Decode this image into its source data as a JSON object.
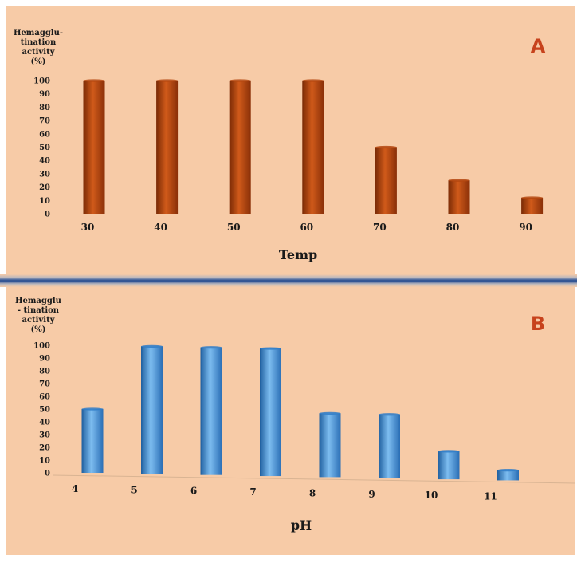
{
  "chart_data": [
    {
      "panel": "A",
      "type": "bar",
      "categories": [
        "30",
        "40",
        "50",
        "60",
        "70",
        "80",
        "90"
      ],
      "values": [
        100,
        100,
        100,
        100,
        50,
        25,
        12
      ],
      "ylabel": [
        "Hemagglu-",
        "tination",
        "activity",
        "(%)"
      ],
      "xlabel": "Temp",
      "ylim": [
        0,
        100
      ],
      "yticks": [
        "0",
        "10",
        "20",
        "30",
        "40",
        "50",
        "60",
        "70",
        "80",
        "90",
        "100"
      ],
      "bar_color": "#b4460f",
      "panel_letter": "A",
      "letter_color": "#c7421c",
      "grid": false
    },
    {
      "panel": "B",
      "type": "bar",
      "categories": [
        "4",
        "5",
        "6",
        "7",
        "8",
        "9",
        "10",
        "11"
      ],
      "values": [
        50,
        100,
        100,
        100,
        50,
        50,
        22,
        8
      ],
      "ylabel": [
        "Hemagglu",
        "- tination",
        "activity",
        "(%)"
      ],
      "xlabel": "pH",
      "ylim": [
        0,
        100
      ],
      "yticks": [
        "0",
        "10",
        "20",
        "30",
        "40",
        "50",
        "60",
        "70",
        "80",
        "90",
        "100"
      ],
      "bar_color": "#2f7cc8",
      "panel_letter": "B",
      "letter_color": "#c7421c",
      "grid": false
    }
  ]
}
